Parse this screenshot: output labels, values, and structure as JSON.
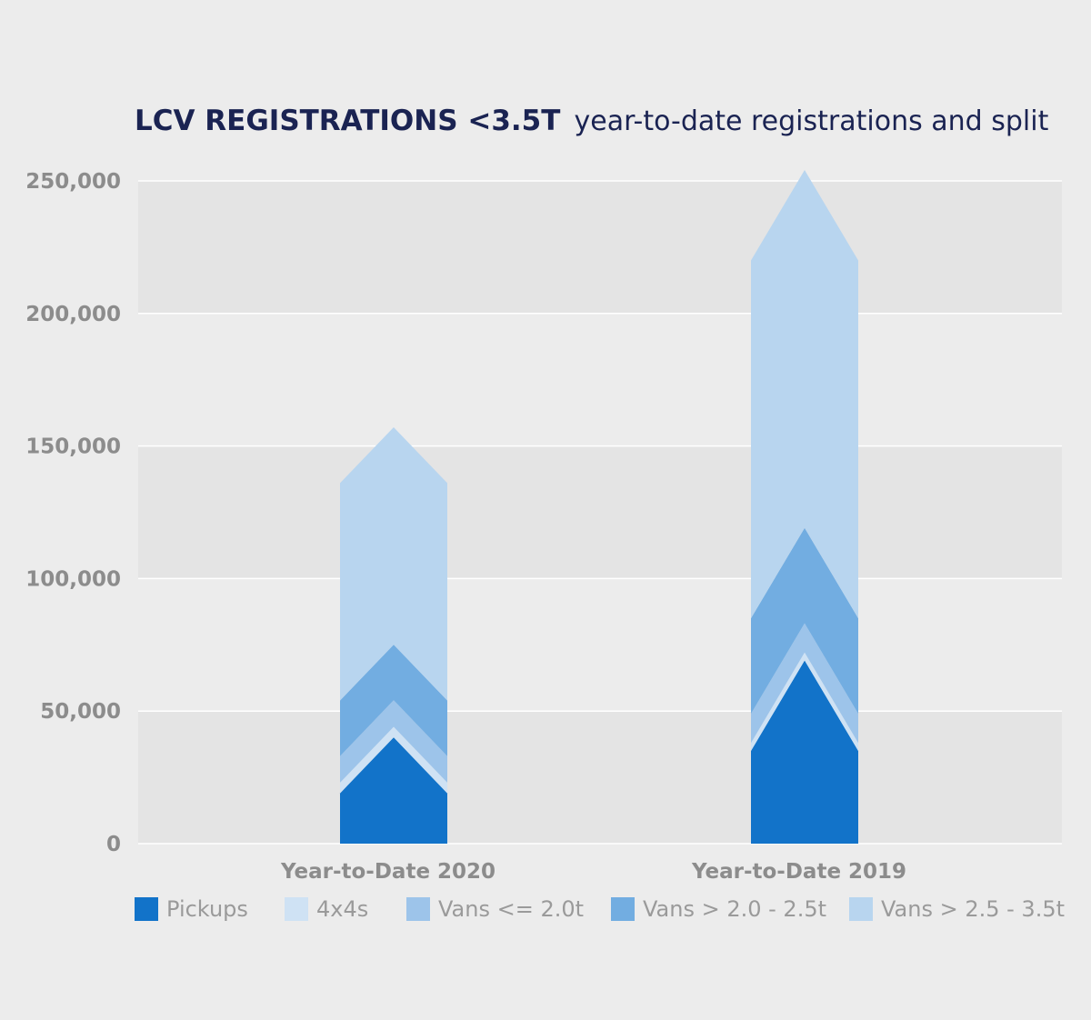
{
  "chart_data": {
    "type": "bar",
    "title": "LCV REGISTRATIONS <3.5T",
    "subtitle": "year-to-date registrations and split",
    "categories": [
      "Year-to-Date 2020",
      "Year-to-Date 2019"
    ],
    "series": [
      {
        "name": "Pickups",
        "color": "#1273c9",
        "values": [
          19000,
          35000
        ]
      },
      {
        "name": "4x4s",
        "color": "#cfe2f4",
        "values": [
          4000,
          3000
        ]
      },
      {
        "name": "Vans <= 2.0t",
        "color": "#9dc4ea",
        "values": [
          10000,
          11000
        ]
      },
      {
        "name": "Vans > 2.0 - 2.5t",
        "color": "#72ade1",
        "values": [
          21000,
          36000
        ]
      },
      {
        "name": "Vans > 2.5 - 3.5t",
        "color": "#b8d5ef",
        "values": [
          82000,
          135000
        ]
      }
    ],
    "ylim": [
      0,
      250000
    ],
    "yticks": [
      "0",
      "50,000",
      "100,000",
      "150,000",
      "200,000",
      "250,000"
    ],
    "legend": "bottom",
    "grid": true
  }
}
